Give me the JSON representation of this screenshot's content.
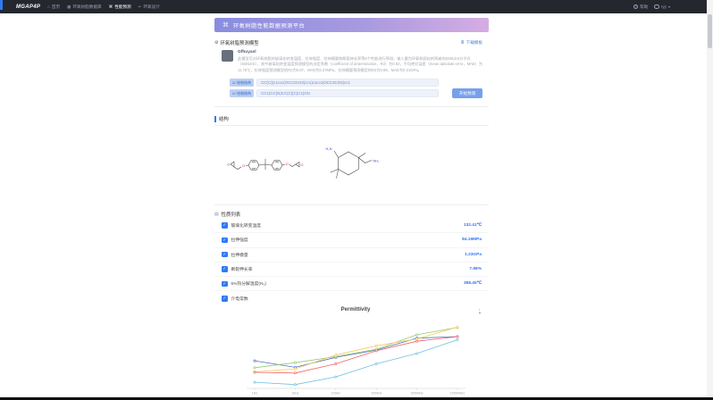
{
  "navbar": {
    "logo": "MGAP4P",
    "items": [
      {
        "label": "首页",
        "icon": "home-icon"
      },
      {
        "label": "环氧树脂数据库",
        "icon": "database-icon"
      },
      {
        "label": "性能预测",
        "icon": "predict-icon",
        "active": true
      },
      {
        "label": "环氧设计",
        "icon": "design-icon"
      }
    ],
    "help_label": "帮助",
    "user_name": "ryy"
  },
  "icons": {
    "home": "⌂",
    "database": "▦",
    "predict": "⌘",
    "design": "✂",
    "help": "?",
    "banner": "⌘",
    "model": "⚙",
    "download": "≣",
    "props": "▤",
    "check": "✓",
    "checkbox": "☑",
    "caret": "▾",
    "chart_download": "↓"
  },
  "banner": {
    "title": "环氧树脂性能数据预测平台",
    "gradient_start": "#8a8ddf",
    "gradient_end": "#d5ade2"
  },
  "model_section": {
    "header": "环氧树脂预测模型",
    "download_link": "下载模板",
    "model_name": "Gfhuyaxl",
    "description": "此模型可对环氧树脂的玻璃化转变温度、拉伸强度、拉伸模量和断裂伸长率等5个性能进行预测，输入量为环氧和固化剂两者的SMILES分子式（SMILES），其中玻璃化转变温度预测模型的决定系数（coefficient of determination，R2）为0.92，平均绝对误差（mean absolute error，MAE）为11.75℃，拉伸强度预测模型的R2为0.87、MAE为6.47MPa，拉伸模量预测模型的R2为0.85、MAE为0.21GPa。"
  },
  "inputs": {
    "draw_button_label": "绘制结构",
    "epoxy_smiles": "CC(C)(c1ccc(OCC2CO2)cc1)c1ccc(OCC2CO2)cc1",
    "hardener_smiles": "CC1(CC(N)CC(C)(C)C1)CN",
    "predict_button": "开始预测"
  },
  "structure_section": {
    "header": "结构"
  },
  "properties_section": {
    "header": "性质列表",
    "accent_color": "#2f7bf5",
    "value_color": "#3370ff",
    "rows": [
      {
        "label": "玻璃化转变温度",
        "value": "132.41℃"
      },
      {
        "label": "拉伸强度",
        "value": "84.19MPa"
      },
      {
        "label": "拉伸模量",
        "value": "1.23GPa"
      },
      {
        "label": "断裂伸长率",
        "value": "7.98%"
      },
      {
        "label": "5%热分解温度(N₂)",
        "value": "358.45℃"
      },
      {
        "label": "介电常数",
        "value": ""
      }
    ]
  },
  "chart_data": {
    "type": "line",
    "title": "Permittivity",
    "x": [
      "1Hz",
      "10Hz",
      "100Hz",
      "1000Hz",
      "10000Hz",
      "100000Hz"
    ],
    "xlabel": "",
    "ylabel": "",
    "ylim": [
      2.9,
      4.6
    ],
    "grid": false,
    "legend_position": "none",
    "series": [
      {
        "name": "series-1",
        "color": "#5470c6",
        "values": [
          3.62,
          3.45,
          3.71,
          3.9,
          4.21,
          4.25
        ]
      },
      {
        "name": "series-2",
        "color": "#91cc75",
        "values": [
          3.44,
          3.57,
          3.73,
          3.92,
          4.3,
          4.49
        ]
      },
      {
        "name": "series-3",
        "color": "#fac858",
        "values": [
          3.33,
          3.41,
          3.77,
          4.01,
          4.19,
          4.5
        ]
      },
      {
        "name": "series-4",
        "color": "#ee6666",
        "values": [
          3.32,
          3.3,
          3.54,
          3.88,
          4.13,
          4.25
        ]
      },
      {
        "name": "series-5",
        "color": "#73c0de",
        "values": [
          3.06,
          3.0,
          3.2,
          3.54,
          3.81,
          4.17
        ]
      }
    ]
  }
}
